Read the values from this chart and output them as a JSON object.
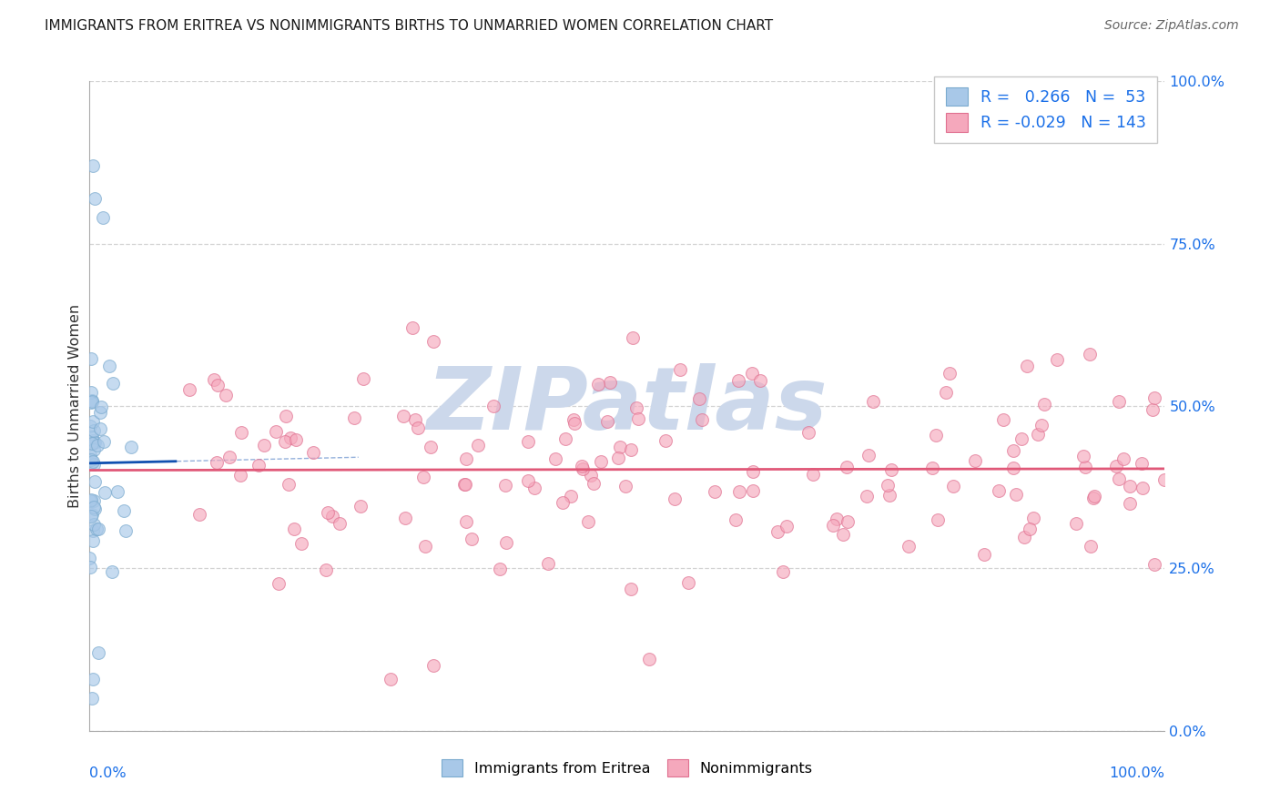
{
  "title": "IMMIGRANTS FROM ERITREA VS NONIMMIGRANTS BIRTHS TO UNMARRIED WOMEN CORRELATION CHART",
  "source": "Source: ZipAtlas.com",
  "ylabel": "Births to Unmarried Women",
  "ytick_vals": [
    0,
    25,
    50,
    75,
    100
  ],
  "ytick_labels": [
    "0.0%",
    "25.0%",
    "50.0%",
    "75.0%",
    "100.0%"
  ],
  "R_blue": 0.266,
  "N_blue": 53,
  "R_pink": -0.029,
  "N_pink": 143,
  "blue_scatter_color": "#a8c8e8",
  "blue_edge_color": "#7aaace",
  "pink_scatter_color": "#f5a8bc",
  "pink_edge_color": "#e07090",
  "blue_line_color": "#1050b0",
  "pink_line_color": "#e05878",
  "watermark_text": "ZIPatlas",
  "watermark_color": "#ccd8eb",
  "background_color": "#ffffff",
  "grid_color": "#cccccc",
  "title_color": "#1a1a1a",
  "source_color": "#666666",
  "axis_tick_color": "#1a6fe8",
  "ylabel_color": "#333333",
  "legend_text_color": "#1a6fe8",
  "legend_label_color": "#333333",
  "seed": 99,
  "xlim": [
    0,
    100
  ],
  "ylim": [
    0,
    100
  ],
  "scatter_size": 100,
  "scatter_alpha": 0.65
}
